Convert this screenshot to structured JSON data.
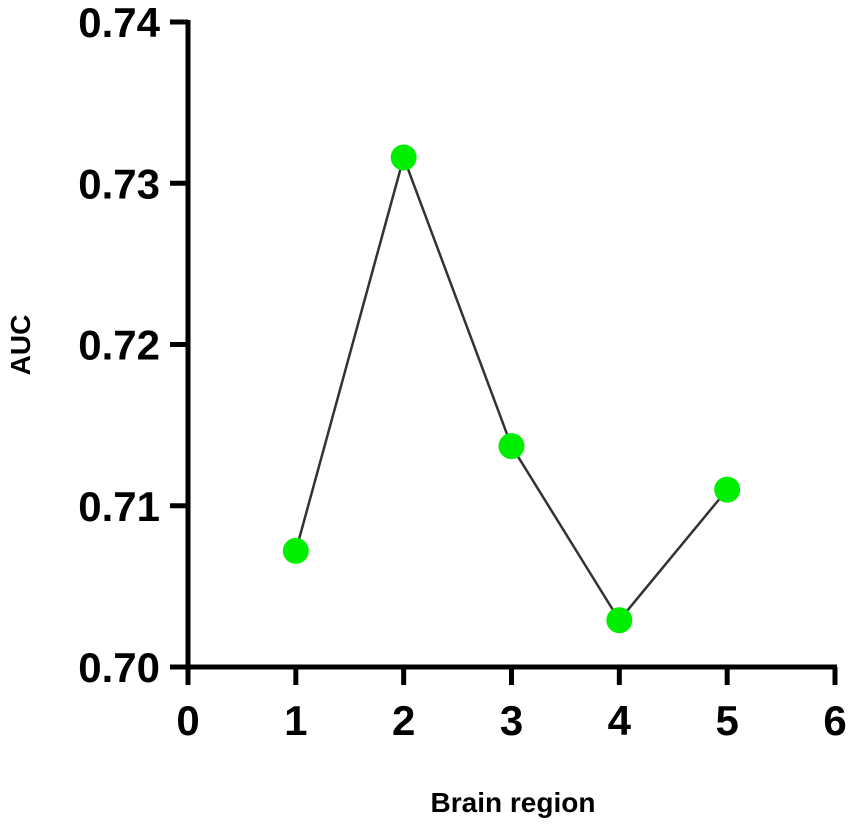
{
  "chart_data": {
    "type": "line",
    "x_label": "Brain region",
    "y_label": "AUC",
    "x": [
      1,
      2,
      3,
      4,
      5
    ],
    "values": [
      0.7072,
      0.7316,
      0.7137,
      0.7029,
      0.711
    ],
    "color": "#00ee00",
    "line_color": "#333333",
    "xlim": [
      0,
      6
    ],
    "xticks": [
      0,
      1,
      2,
      3,
      4,
      5,
      6
    ],
    "ylim": [
      0.7,
      0.74
    ],
    "yticks": [
      {
        "value": 0.7,
        "label": "0.70"
      },
      0.71,
      0.72,
      0.73,
      0.74
    ]
  }
}
